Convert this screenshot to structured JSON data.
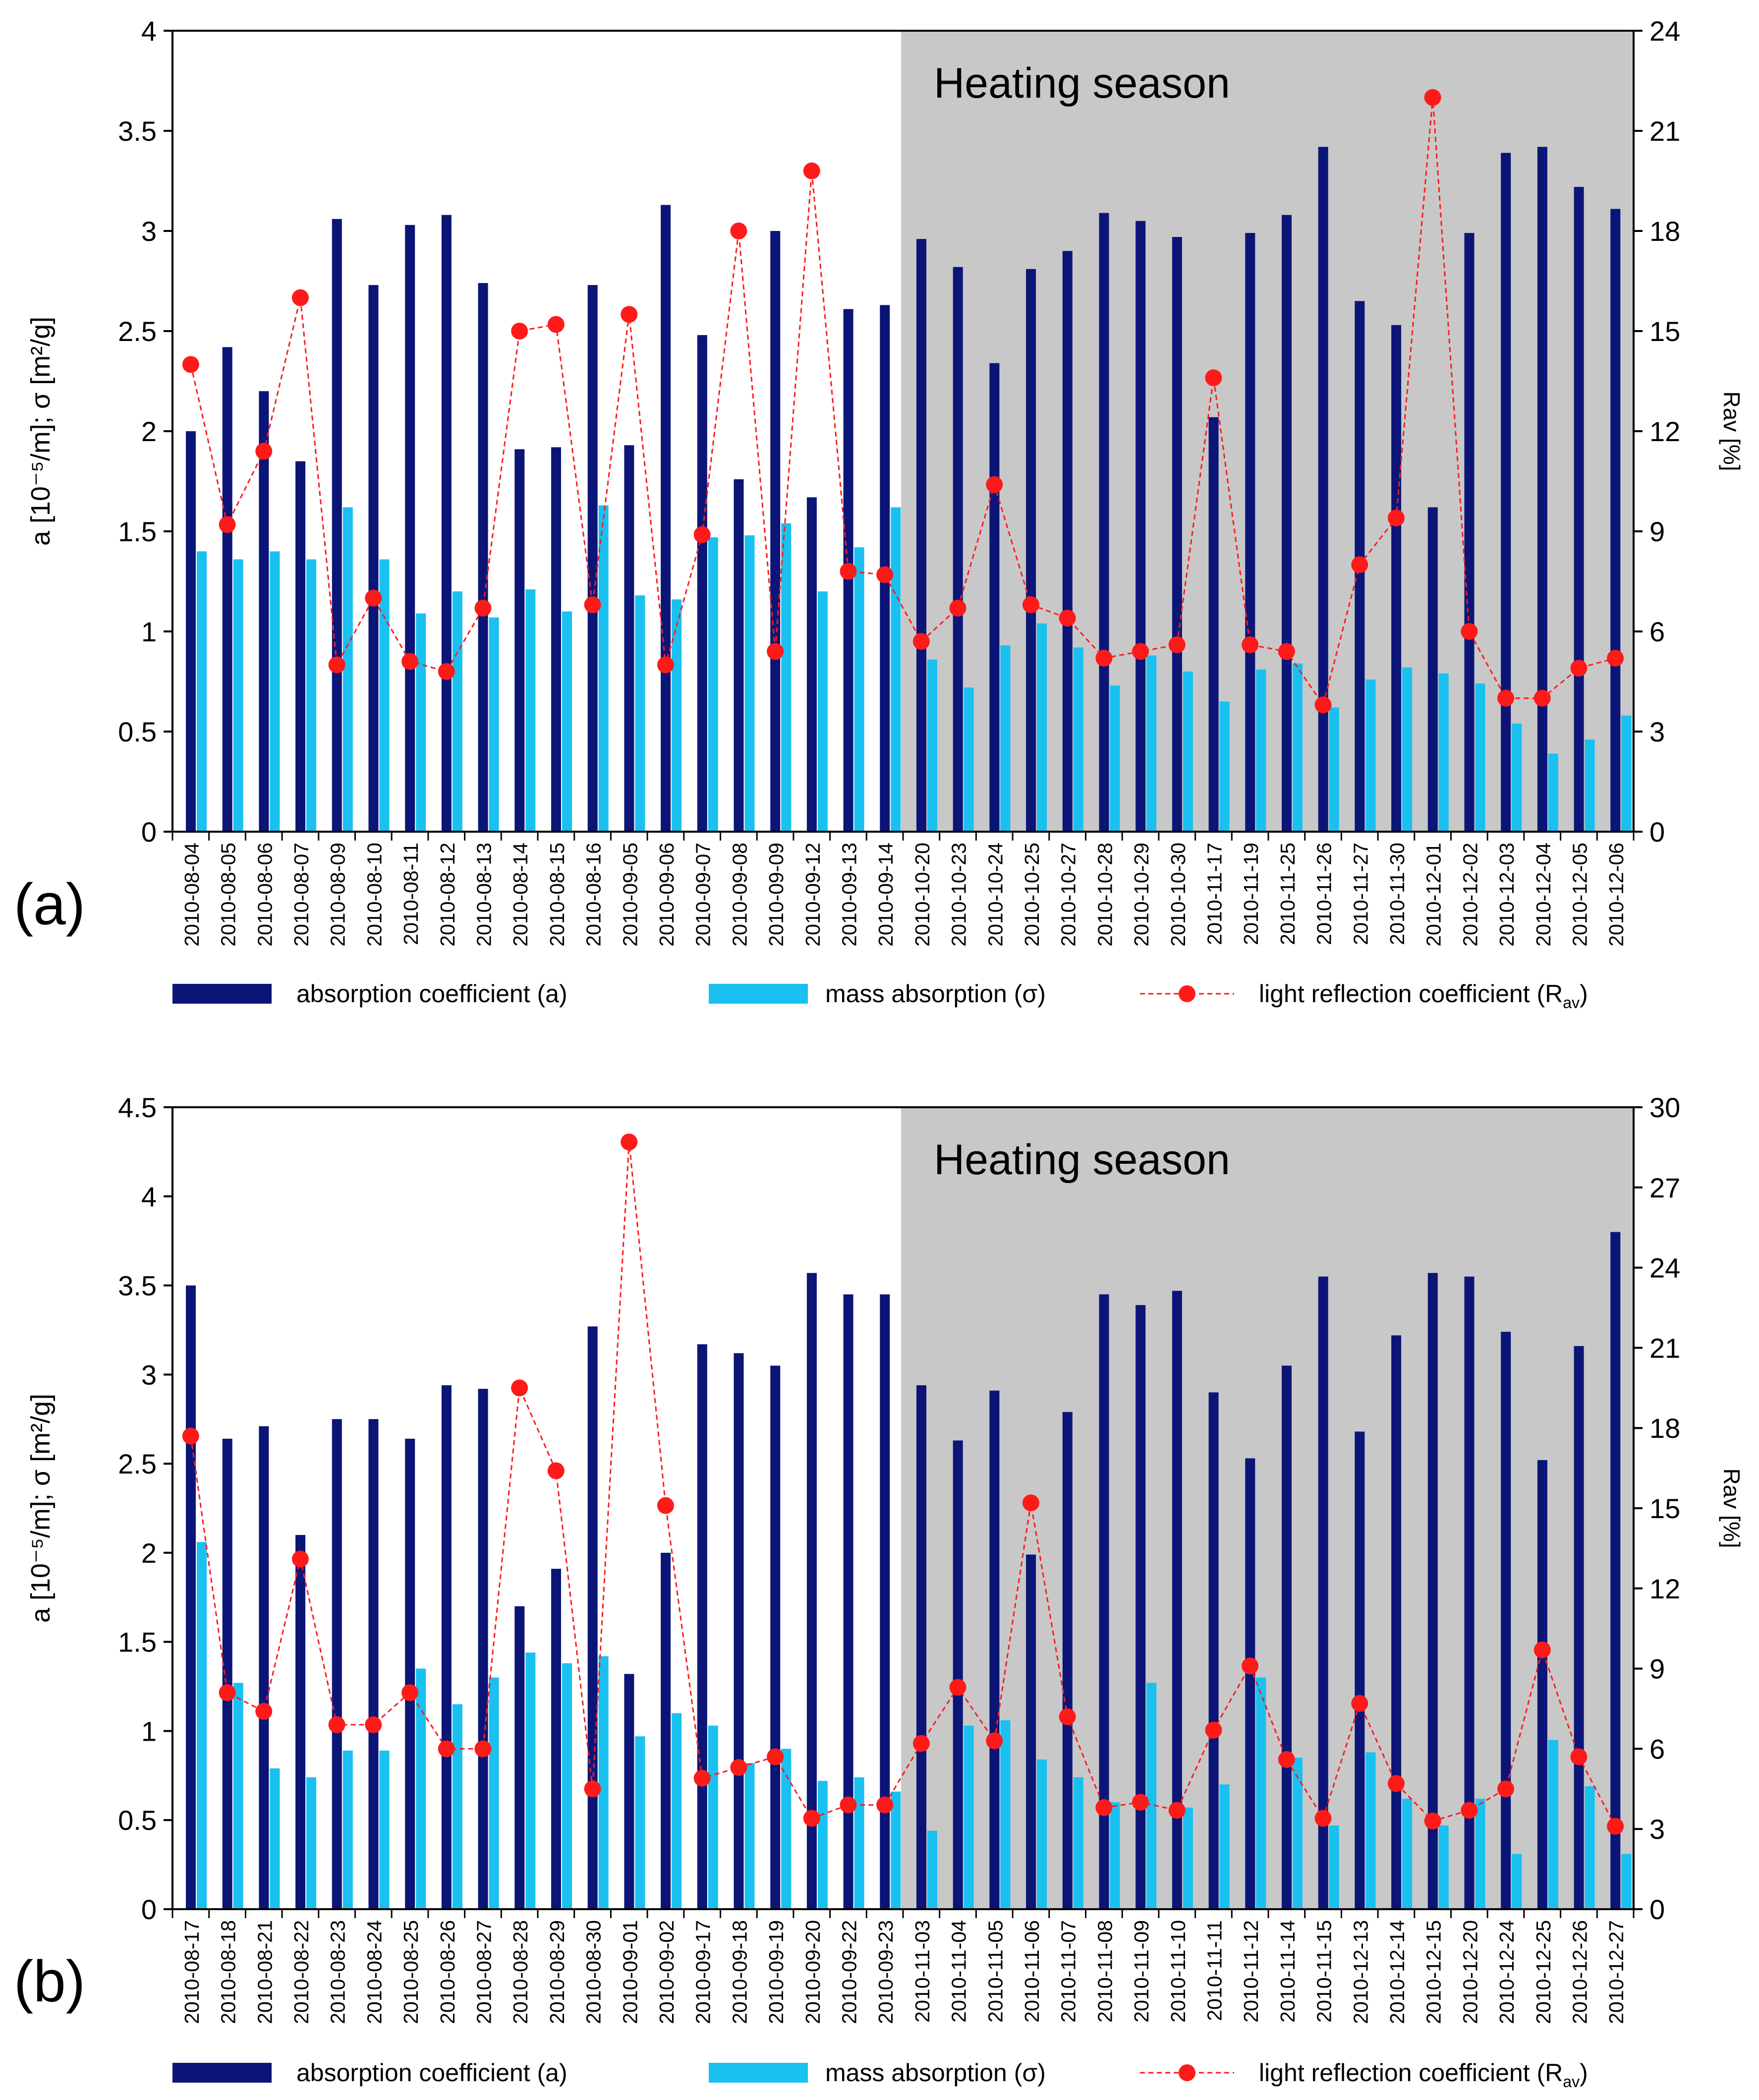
{
  "legend": {
    "absorption": "absorption coefficient  (a)",
    "mass": "mass absorption (σ)",
    "reflection_prefix": "light reflection coefficient (R",
    "reflection_sub": "av",
    "reflection_suffix": ")"
  },
  "colors": {
    "absorption": "#0b1577",
    "mass": "#19c0f0",
    "reflection": "#ff1a1a",
    "heating_bg": "#c8c8c8"
  },
  "chart_data": [
    {
      "type": "bar",
      "panel_label": "(a)",
      "heating_label": "Heating season",
      "heating_start_index": 20,
      "ylabel_left": "a [10⁻⁵/m]; σ [m²/g]",
      "ylabel_right": "Rav [%]",
      "ylim_left": [
        0,
        4
      ],
      "yticks_left": [
        "0",
        "0.5",
        "1",
        "1.5",
        "2",
        "2.5",
        "3",
        "3.5",
        "4"
      ],
      "ylim_right": [
        0,
        24
      ],
      "yticks_right": [
        "0",
        "3",
        "6",
        "9",
        "12",
        "15",
        "18",
        "21",
        "24"
      ],
      "categories": [
        "2010-08-04",
        "2010-08-05",
        "2010-08-06",
        "2010-08-07",
        "2010-08-09",
        "2010-08-10",
        "2010-08-11",
        "2010-08-12",
        "2010-08-13",
        "2010-08-14",
        "2010-08-15",
        "2010-08-16",
        "2010-09-05",
        "2010-09-06",
        "2010-09-07",
        "2010-09-08",
        "2010-09-09",
        "2010-09-12",
        "2010-09-13",
        "2010-09-14",
        "2010-10-20",
        "2010-10-23",
        "2010-10-24",
        "2010-10-25",
        "2010-10-27",
        "2010-10-28",
        "2010-10-29",
        "2010-10-30",
        "2010-11-17",
        "2010-11-19",
        "2010-11-25",
        "2010-11-26",
        "2010-11-27",
        "2010-11-30",
        "2010-12-01",
        "2010-12-02",
        "2010-12-03",
        "2010-12-04",
        "2010-12-05",
        "2010-12-06"
      ],
      "series": [
        {
          "name": "absorption coefficient (a)",
          "axis": "left",
          "kind": "bar",
          "values": [
            2.0,
            2.42,
            2.2,
            1.85,
            3.06,
            2.73,
            3.03,
            3.08,
            2.74,
            1.91,
            1.92,
            2.73,
            1.93,
            3.13,
            2.48,
            1.76,
            3.0,
            1.67,
            2.61,
            2.63,
            2.96,
            2.82,
            2.34,
            2.81,
            2.9,
            3.09,
            3.05,
            2.97,
            2.07,
            2.99,
            3.08,
            3.42,
            2.65,
            2.53,
            1.62,
            2.99,
            3.39,
            3.42,
            3.22,
            3.11
          ]
        },
        {
          "name": "mass absorption (σ)",
          "axis": "left",
          "kind": "bar",
          "values": [
            1.4,
            1.36,
            1.4,
            1.36,
            1.62,
            1.36,
            1.09,
            1.2,
            1.07,
            1.21,
            1.1,
            1.63,
            1.18,
            1.16,
            1.47,
            1.48,
            1.54,
            1.2,
            1.42,
            1.62,
            0.86,
            0.72,
            0.93,
            1.04,
            0.92,
            0.73,
            0.88,
            0.8,
            0.65,
            0.81,
            0.84,
            0.62,
            0.76,
            0.82,
            0.79,
            0.74,
            0.54,
            0.39,
            0.46,
            0.58
          ]
        },
        {
          "name": "light reflection coefficient (Rav)",
          "axis": "right",
          "kind": "line",
          "values": [
            14.0,
            9.2,
            11.4,
            16.0,
            5.0,
            7.0,
            5.1,
            4.8,
            6.7,
            15.0,
            15.2,
            6.8,
            15.5,
            5.0,
            8.9,
            18.0,
            5.4,
            19.8,
            7.8,
            7.7,
            5.7,
            6.7,
            10.4,
            6.8,
            6.4,
            5.2,
            5.4,
            5.6,
            13.6,
            5.6,
            5.4,
            3.8,
            8.0,
            9.4,
            22.0,
            6.0,
            4.0,
            4.0,
            4.9,
            5.2
          ]
        }
      ]
    },
    {
      "type": "bar",
      "panel_label": "(b)",
      "heating_label": "Heating season",
      "heating_start_index": 20,
      "ylabel_left": "a [10⁻⁵/m]; σ [m²/g]",
      "ylabel_right": "Rav [%]",
      "ylim_left": [
        0,
        4.5
      ],
      "yticks_left": [
        "0",
        "0.5",
        "1",
        "1.5",
        "2",
        "2.5",
        "3",
        "3.5",
        "4",
        "4.5"
      ],
      "ylim_right": [
        0,
        30
      ],
      "yticks_right": [
        "0",
        "3",
        "6",
        "9",
        "12",
        "15",
        "18",
        "21",
        "24",
        "27",
        "30"
      ],
      "categories": [
        "2010-08-17",
        "2010-08-18",
        "2010-08-21",
        "2010-08-22",
        "2010-08-23",
        "2010-08-24",
        "2010-08-25",
        "2010-08-26",
        "2010-08-27",
        "2010-08-28",
        "2010-08-29",
        "2010-08-30",
        "2010-09-01",
        "2010-09-02",
        "2010-09-17",
        "2010-09-18",
        "2010-09-19",
        "2010-09-20",
        "2010-09-22",
        "2010-09-23",
        "2010-11-03",
        "2010-11-04",
        "2010-11-05",
        "2010-11-06",
        "2010-11-07",
        "2010-11-08",
        "2010-11-09",
        "2010-11-10",
        "2010-11-11",
        "2010-11-12",
        "2010-11-14",
        "2010-11-15",
        "2010-12-13",
        "2010-12-14",
        "2010-12-15",
        "2010-12-20",
        "2010-12-24",
        "2010-12-25",
        "2010-12-26",
        "2010-12-27"
      ],
      "series": [
        {
          "name": "absorption coefficient (a)",
          "axis": "left",
          "kind": "bar",
          "values": [
            3.5,
            2.64,
            2.71,
            2.1,
            2.75,
            2.75,
            2.64,
            2.94,
            2.92,
            1.7,
            1.91,
            3.27,
            1.32,
            2.0,
            3.17,
            3.12,
            3.05,
            3.57,
            3.45,
            3.45,
            2.94,
            2.63,
            2.91,
            1.99,
            2.79,
            3.45,
            3.39,
            3.47,
            2.9,
            2.53,
            3.05,
            3.55,
            2.68,
            3.22,
            3.57,
            3.55,
            3.24,
            2.52,
            3.16,
            3.8
          ]
        },
        {
          "name": "mass absorption (σ)",
          "axis": "left",
          "kind": "bar",
          "values": [
            2.06,
            1.27,
            0.79,
            0.74,
            0.89,
            0.89,
            1.35,
            1.15,
            1.3,
            1.44,
            1.38,
            1.42,
            0.97,
            1.1,
            1.03,
            0.82,
            0.9,
            0.72,
            0.74,
            0.66,
            0.44,
            1.03,
            1.06,
            0.84,
            0.74,
            0.6,
            1.27,
            0.57,
            0.7,
            1.3,
            0.85,
            0.47,
            0.88,
            0.62,
            0.47,
            0.62,
            0.31,
            0.95,
            0.69,
            0.31
          ]
        },
        {
          "name": "light reflection coefficient (Rav)",
          "axis": "right",
          "kind": "line",
          "values": [
            17.7,
            8.1,
            7.4,
            13.1,
            6.9,
            6.9,
            8.1,
            6.0,
            6.0,
            19.5,
            16.4,
            4.5,
            28.7,
            15.1,
            4.9,
            5.3,
            5.7,
            3.4,
            3.9,
            3.9,
            6.2,
            8.3,
            6.3,
            15.2,
            7.2,
            3.8,
            4.0,
            3.7,
            6.7,
            9.1,
            5.6,
            3.4,
            7.7,
            4.7,
            3.3,
            3.7,
            4.5,
            9.7,
            5.7,
            3.1
          ]
        }
      ]
    }
  ]
}
